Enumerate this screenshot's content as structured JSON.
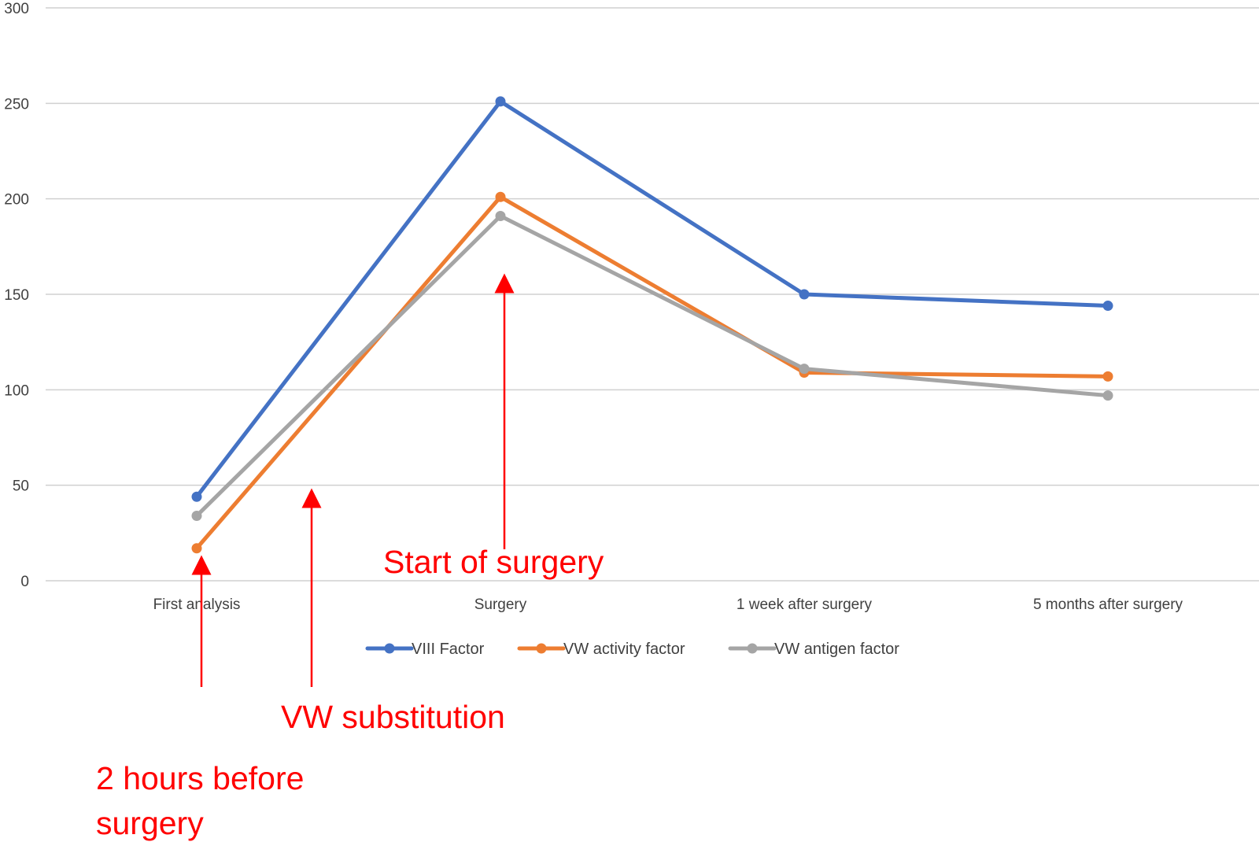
{
  "chart_data": {
    "type": "line",
    "categories": [
      "First analysis",
      "Surgery",
      "1 week after surgery",
      "5 months after surgery"
    ],
    "series": [
      {
        "name": "VIII Factor",
        "color": "#4472c4",
        "values": [
          44,
          251,
          150,
          144
        ]
      },
      {
        "name": "VW activity factor",
        "color": "#ed7d31",
        "values": [
          17,
          201,
          109,
          107
        ]
      },
      {
        "name": "VW antigen factor",
        "color": "#a5a5a5",
        "values": [
          34,
          191,
          111,
          97
        ]
      }
    ],
    "ylim": [
      0,
      300
    ],
    "yticks": [
      0,
      50,
      100,
      150,
      200,
      250,
      300
    ],
    "grid": true,
    "legend_position": "bottom",
    "annotations": {
      "start_of_surgery": "Start of surgery",
      "vw_substitution": "VW substitution",
      "before_surgery_line1": "2 hours before",
      "before_surgery_line2": "surgery"
    },
    "annotation_color": "#ff0000"
  }
}
